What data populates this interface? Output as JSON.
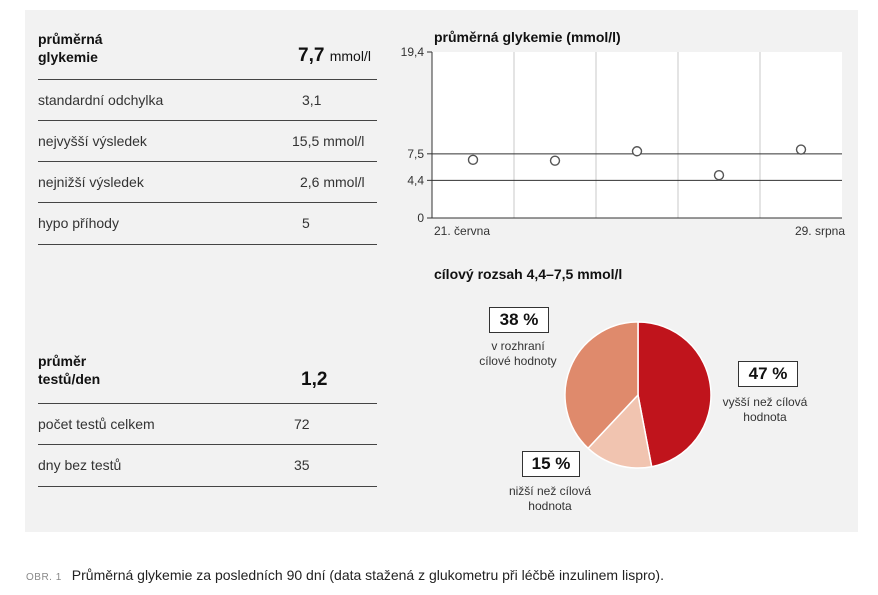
{
  "stats_glycemia": {
    "title_line1": "průměrná",
    "title_line2": "glykemie",
    "value": "7,7",
    "unit": "mmol/l",
    "rows": [
      {
        "label": "standardní odchylka",
        "value": "3,1"
      },
      {
        "label": "nejvyšší výsledek",
        "value": "15,5 mmol/l"
      },
      {
        "label": "nejnižší výsledek",
        "value": "2,6 mmol/l"
      },
      {
        "label": "hypo příhody",
        "value": "5"
      }
    ]
  },
  "stats_tests": {
    "title_line1": "průměr",
    "title_line2": "testů/den",
    "value": "1,2",
    "rows": [
      {
        "label": "počet testů celkem",
        "value": "72"
      },
      {
        "label": "dny bez testů",
        "value": "35"
      }
    ]
  },
  "chart_data": [
    {
      "type": "scatter",
      "title": "průměrná glykemie (mmol/l)",
      "xlabel": "",
      "ylabel": "",
      "x_tick_labels": [
        "21. června",
        "29. srpna"
      ],
      "y_ticks": [
        "0",
        "4,4",
        "7,5",
        "19,4"
      ],
      "y_tick_values": [
        0,
        4.4,
        7.5,
        19.4
      ],
      "ylim": [
        0,
        19.4
      ],
      "reference_lines": [
        4.4,
        7.5
      ],
      "x": [
        1,
        2,
        3,
        4,
        5
      ],
      "values": [
        6.8,
        6.7,
        7.8,
        5.0,
        8.0
      ],
      "grid": "vertical"
    },
    {
      "type": "pie",
      "title": "cílový rozsah 4,4–7,5 mmol/l",
      "slices": [
        {
          "label_line1": "vyšší než cílová",
          "label_line2": "hodnota",
          "value": 47,
          "display": "47 %",
          "color": "#c0141c"
        },
        {
          "label_line1": "nižší než cílová",
          "label_line2": "hodnota",
          "value": 15,
          "display": "15 %",
          "color": "#f1c4b0"
        },
        {
          "label_line1": "v rozhraní",
          "label_line2": "cílové hodnoty",
          "value": 38,
          "display": "38 %",
          "color": "#df8a6c"
        }
      ]
    }
  ],
  "caption": {
    "label": "OBR. 1",
    "text": "Průměrná glykemie za posledních 90 dní (data stažená z glukometru při léčbě inzulinem lispro)."
  }
}
